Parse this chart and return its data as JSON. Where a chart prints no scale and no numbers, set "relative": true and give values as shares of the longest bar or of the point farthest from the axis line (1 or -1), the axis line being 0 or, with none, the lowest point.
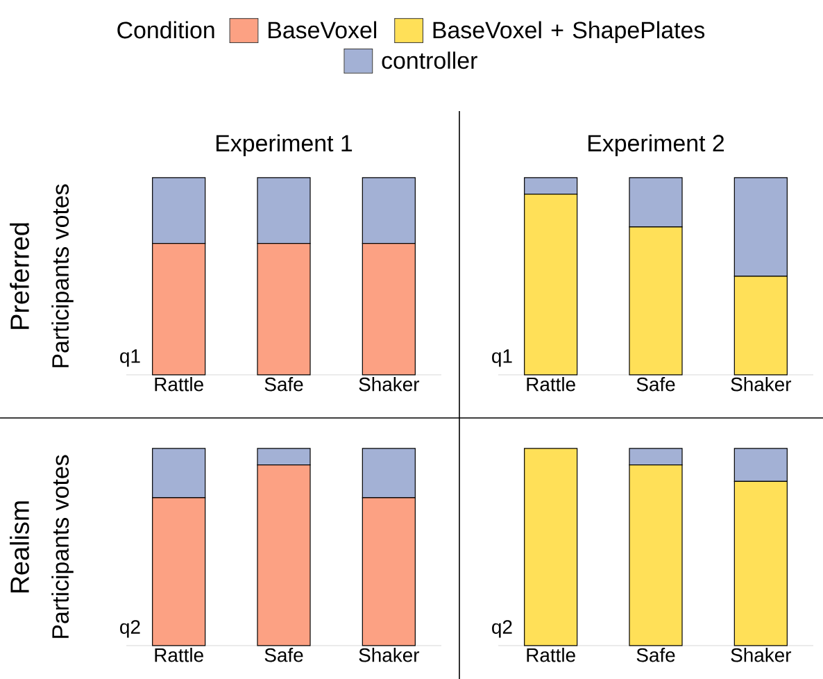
{
  "chart_data": [
    {
      "type": "bar",
      "stacked": true,
      "relative": true,
      "title": "Experiment 1",
      "ylabel": "Participants votes",
      "annotations": [
        "Preferred",
        "q1"
      ],
      "legend": "top",
      "legend_title": "Condition",
      "categories": [
        "Rattle",
        "Safe",
        "Shaker"
      ],
      "series": [
        {
          "name": "BaseVoxel",
          "color": "#fca183",
          "values": [
            0.667,
            0.667,
            0.667
          ]
        },
        {
          "name": "controller",
          "color": "#a3b1d5",
          "values": [
            0.333,
            0.333,
            0.333
          ]
        }
      ]
    },
    {
      "type": "bar",
      "stacked": true,
      "relative": true,
      "title": "Experiment 2",
      "annotations": [
        "q1"
      ],
      "categories": [
        "Rattle",
        "Safe",
        "Shaker"
      ],
      "series": [
        {
          "name": "BaseVoxel + ShapePlates",
          "color": "#ffe058",
          "values": [
            0.917,
            0.75,
            0.5
          ]
        },
        {
          "color": "#a3b1d5",
          "values": [
            0.083,
            0.25,
            0.5
          ]
        }
      ]
    },
    {
      "type": "bar",
      "stacked": true,
      "relative": true,
      "ylabel": "Participants votes",
      "annotations": [
        "Realism",
        "q2"
      ],
      "categories": [
        "Rattle",
        "Safe",
        "Shaker"
      ],
      "series": [
        {
          "color": "#fca183",
          "values": [
            0.75,
            0.917,
            0.75
          ]
        },
        {
          "color": "#a3b1d5",
          "values": [
            0.25,
            0.083,
            0.25
          ]
        }
      ]
    },
    {
      "type": "bar",
      "stacked": true,
      "relative": true,
      "annotations": [
        "q2"
      ],
      "categories": [
        "Rattle",
        "Safe",
        "Shaker"
      ],
      "series": [
        {
          "color": "#ffe058",
          "values": [
            1,
            0.917,
            0.833
          ]
        },
        {
          "color": "#a3b1d5",
          "values": [
            0,
            0.083,
            0.167
          ]
        }
      ]
    }
  ]
}
